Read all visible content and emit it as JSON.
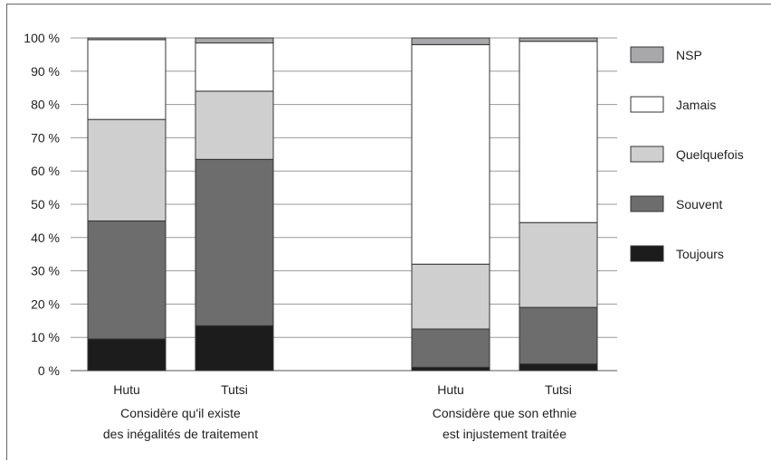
{
  "chart_data": {
    "type": "bar",
    "stacked": true,
    "title": "",
    "xlabel": "",
    "ylabel": "",
    "ylim": [
      0,
      100
    ],
    "y_ticks": [
      "0 %",
      "10 %",
      "20 %",
      "30 %",
      "40 %",
      "50 %",
      "60 %",
      "70 %",
      "80 %",
      "90 %",
      "100 %"
    ],
    "grid": true,
    "legend_position": "right",
    "categories": [
      "Hutu",
      "Tutsi",
      "Hutu",
      "Tutsi"
    ],
    "groups": [
      {
        "label_lines": [
          "Considère qu'il existe",
          "des inégalités de traitement"
        ]
      },
      {
        "label_lines": [
          "Considère que son ethnie",
          "est injustement traitée"
        ]
      }
    ],
    "series": [
      {
        "name": "Toujours",
        "color": "#1c1c1c",
        "values": [
          9.5,
          13.5,
          1,
          2
        ]
      },
      {
        "name": "Souvent",
        "color": "#6d6d6d",
        "values": [
          35.5,
          50,
          11.5,
          17
        ]
      },
      {
        "name": "Quelquefois",
        "color": "#cfcfcf",
        "values": [
          30.5,
          20.5,
          19.5,
          25.5
        ]
      },
      {
        "name": "Jamais",
        "color": "#ffffff",
        "values": [
          24,
          14.5,
          66,
          54.5
        ]
      },
      {
        "name": "NSP",
        "color": "#a8a8ab",
        "values": [
          0.5,
          1.5,
          2,
          1
        ]
      }
    ]
  }
}
